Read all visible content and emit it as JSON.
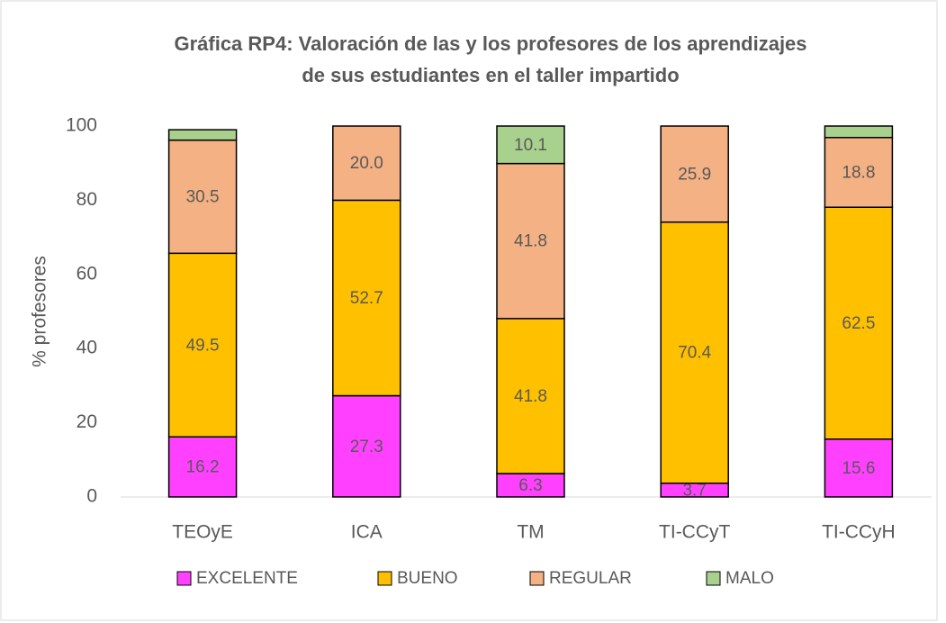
{
  "chart_data": {
    "type": "stacked_bar",
    "title": "Gráfica RP4: Valoración de las y los profesores de los aprendizajes",
    "subtitle": "de sus estudiantes en el taller impartido",
    "y_label": "% profesores",
    "categories": [
      "TEOyE",
      "ICA",
      "TM",
      "TI-CCyT",
      "TI-CCyH"
    ],
    "series": [
      {
        "name": "EXCELENTE",
        "color": "#ff40ff",
        "values": [
          16.2,
          27.3,
          6.3,
          3.7,
          15.6
        ],
        "value_labels": [
          "16.2",
          "27.3",
          "6.3",
          "3.7",
          "15.6"
        ]
      },
      {
        "name": "BUENO",
        "color": "#ffc000",
        "values": [
          49.5,
          52.7,
          41.8,
          70.4,
          62.5
        ],
        "value_labels": [
          "49.5",
          "52.7",
          "41.8",
          "70.4",
          "62.5"
        ]
      },
      {
        "name": "REGULAR",
        "color": "#f4b183",
        "values": [
          30.5,
          20.0,
          41.8,
          25.9,
          18.8
        ],
        "value_labels": [
          "30.5",
          "20.0",
          "41.8",
          "25.9",
          "18.8"
        ]
      },
      {
        "name": "MALO",
        "color": "#a9d18e",
        "values": [
          2.8,
          0,
          10.1,
          0,
          3.1
        ],
        "value_labels": [
          null,
          null,
          "10.1",
          null,
          null
        ]
      }
    ],
    "ylim": [
      0,
      100
    ],
    "yticks": [
      0,
      20,
      40,
      60,
      80,
      100
    ],
    "grid": false,
    "legend": "bottom"
  }
}
